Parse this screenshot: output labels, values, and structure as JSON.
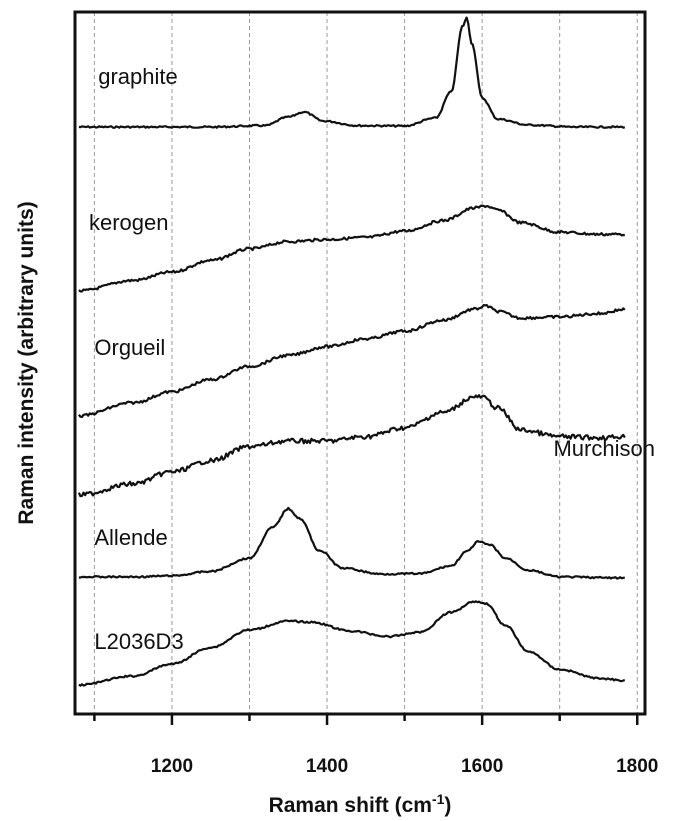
{
  "chart_data": {
    "type": "line",
    "title": "",
    "xlabel": "Raman shift (cm",
    "xlabel_superscript": "-1",
    "xlabel_suffix": ")",
    "ylabel": "Raman intensity (arbitrary units)",
    "xlim": [
      1075,
      1810
    ],
    "x_ticks_labeled": [
      1200,
      1400,
      1600,
      1800
    ],
    "x_ticks_minor": [
      1100,
      1300,
      1500,
      1700
    ],
    "grid": "vertical dashed lines at 100 cm-1 intervals",
    "y_ticks_shown": false,
    "series": [
      {
        "name": "graphite",
        "label_x": 1105,
        "points": [
          [
            1080,
            0.05
          ],
          [
            1150,
            0.05
          ],
          [
            1250,
            0.05
          ],
          [
            1320,
            0.12
          ],
          [
            1350,
            0.55
          ],
          [
            1370,
            0.8
          ],
          [
            1395,
            0.35
          ],
          [
            1440,
            0.12
          ],
          [
            1500,
            0.1
          ],
          [
            1540,
            0.5
          ],
          [
            1560,
            1.8
          ],
          [
            1575,
            5.1
          ],
          [
            1580,
            5.5
          ],
          [
            1587,
            4.2
          ],
          [
            1600,
            1.5
          ],
          [
            1620,
            0.45
          ],
          [
            1660,
            0.15
          ],
          [
            1720,
            0.05
          ],
          [
            1785,
            0.05
          ]
        ]
      },
      {
        "name": "kerogen",
        "label_x": 1093,
        "points": [
          [
            1080,
            0.05
          ],
          [
            1150,
            0.55
          ],
          [
            1200,
            0.95
          ],
          [
            1250,
            1.5
          ],
          [
            1300,
            2.05
          ],
          [
            1350,
            2.4
          ],
          [
            1400,
            2.5
          ],
          [
            1450,
            2.6
          ],
          [
            1500,
            2.9
          ],
          [
            1550,
            3.4
          ],
          [
            1590,
            4.0
          ],
          [
            1605,
            4.1
          ],
          [
            1620,
            3.9
          ],
          [
            1650,
            3.3
          ],
          [
            1700,
            2.85
          ],
          [
            1750,
            2.75
          ],
          [
            1785,
            2.75
          ]
        ]
      },
      {
        "name": "Orgueil",
        "label_x": 1100,
        "points": [
          [
            1080,
            0.05
          ],
          [
            1150,
            0.65
          ],
          [
            1200,
            1.15
          ],
          [
            1250,
            1.7
          ],
          [
            1300,
            2.3
          ],
          [
            1350,
            2.8
          ],
          [
            1400,
            3.2
          ],
          [
            1450,
            3.55
          ],
          [
            1500,
            3.9
          ],
          [
            1550,
            4.4
          ],
          [
            1590,
            4.9
          ],
          [
            1605,
            5.05
          ],
          [
            1620,
            4.8
          ],
          [
            1650,
            4.5
          ],
          [
            1700,
            4.55
          ],
          [
            1750,
            4.7
          ],
          [
            1785,
            4.9
          ]
        ]
      },
      {
        "name": "Murchison",
        "label_x": 1692,
        "points": [
          [
            1080,
            0.05
          ],
          [
            1150,
            0.55
          ],
          [
            1200,
            1.1
          ],
          [
            1250,
            1.6
          ],
          [
            1300,
            2.25
          ],
          [
            1350,
            2.5
          ],
          [
            1400,
            2.5
          ],
          [
            1450,
            2.7
          ],
          [
            1500,
            3.1
          ],
          [
            1550,
            3.8
          ],
          [
            1590,
            4.5
          ],
          [
            1600,
            4.5
          ],
          [
            1620,
            4.0
          ],
          [
            1650,
            3.0
          ],
          [
            1700,
            2.7
          ],
          [
            1750,
            2.65
          ],
          [
            1785,
            2.7
          ]
        ]
      },
      {
        "name": "Allende",
        "label_x": 1100,
        "points": [
          [
            1080,
            0.05
          ],
          [
            1150,
            0.05
          ],
          [
            1200,
            0.1
          ],
          [
            1250,
            0.3
          ],
          [
            1300,
            0.9
          ],
          [
            1330,
            2.3
          ],
          [
            1350,
            3.15
          ],
          [
            1365,
            2.7
          ],
          [
            1390,
            1.25
          ],
          [
            1420,
            0.45
          ],
          [
            1470,
            0.18
          ],
          [
            1520,
            0.2
          ],
          [
            1560,
            0.55
          ],
          [
            1580,
            1.2
          ],
          [
            1595,
            1.65
          ],
          [
            1610,
            1.5
          ],
          [
            1630,
            0.9
          ],
          [
            1660,
            0.35
          ],
          [
            1700,
            0.05
          ],
          [
            1785,
            0.0
          ]
        ]
      },
      {
        "name": "L2036D3",
        "label_x": 1100,
        "points": [
          [
            1080,
            0.05
          ],
          [
            1150,
            0.45
          ],
          [
            1200,
            1.0
          ],
          [
            1250,
            1.75
          ],
          [
            1300,
            2.55
          ],
          [
            1350,
            2.95
          ],
          [
            1380,
            2.9
          ],
          [
            1430,
            2.5
          ],
          [
            1480,
            2.25
          ],
          [
            1520,
            2.45
          ],
          [
            1560,
            3.35
          ],
          [
            1590,
            3.85
          ],
          [
            1605,
            3.75
          ],
          [
            1630,
            2.75
          ],
          [
            1660,
            1.55
          ],
          [
            1700,
            0.75
          ],
          [
            1750,
            0.35
          ],
          [
            1785,
            0.25
          ]
        ]
      }
    ]
  }
}
